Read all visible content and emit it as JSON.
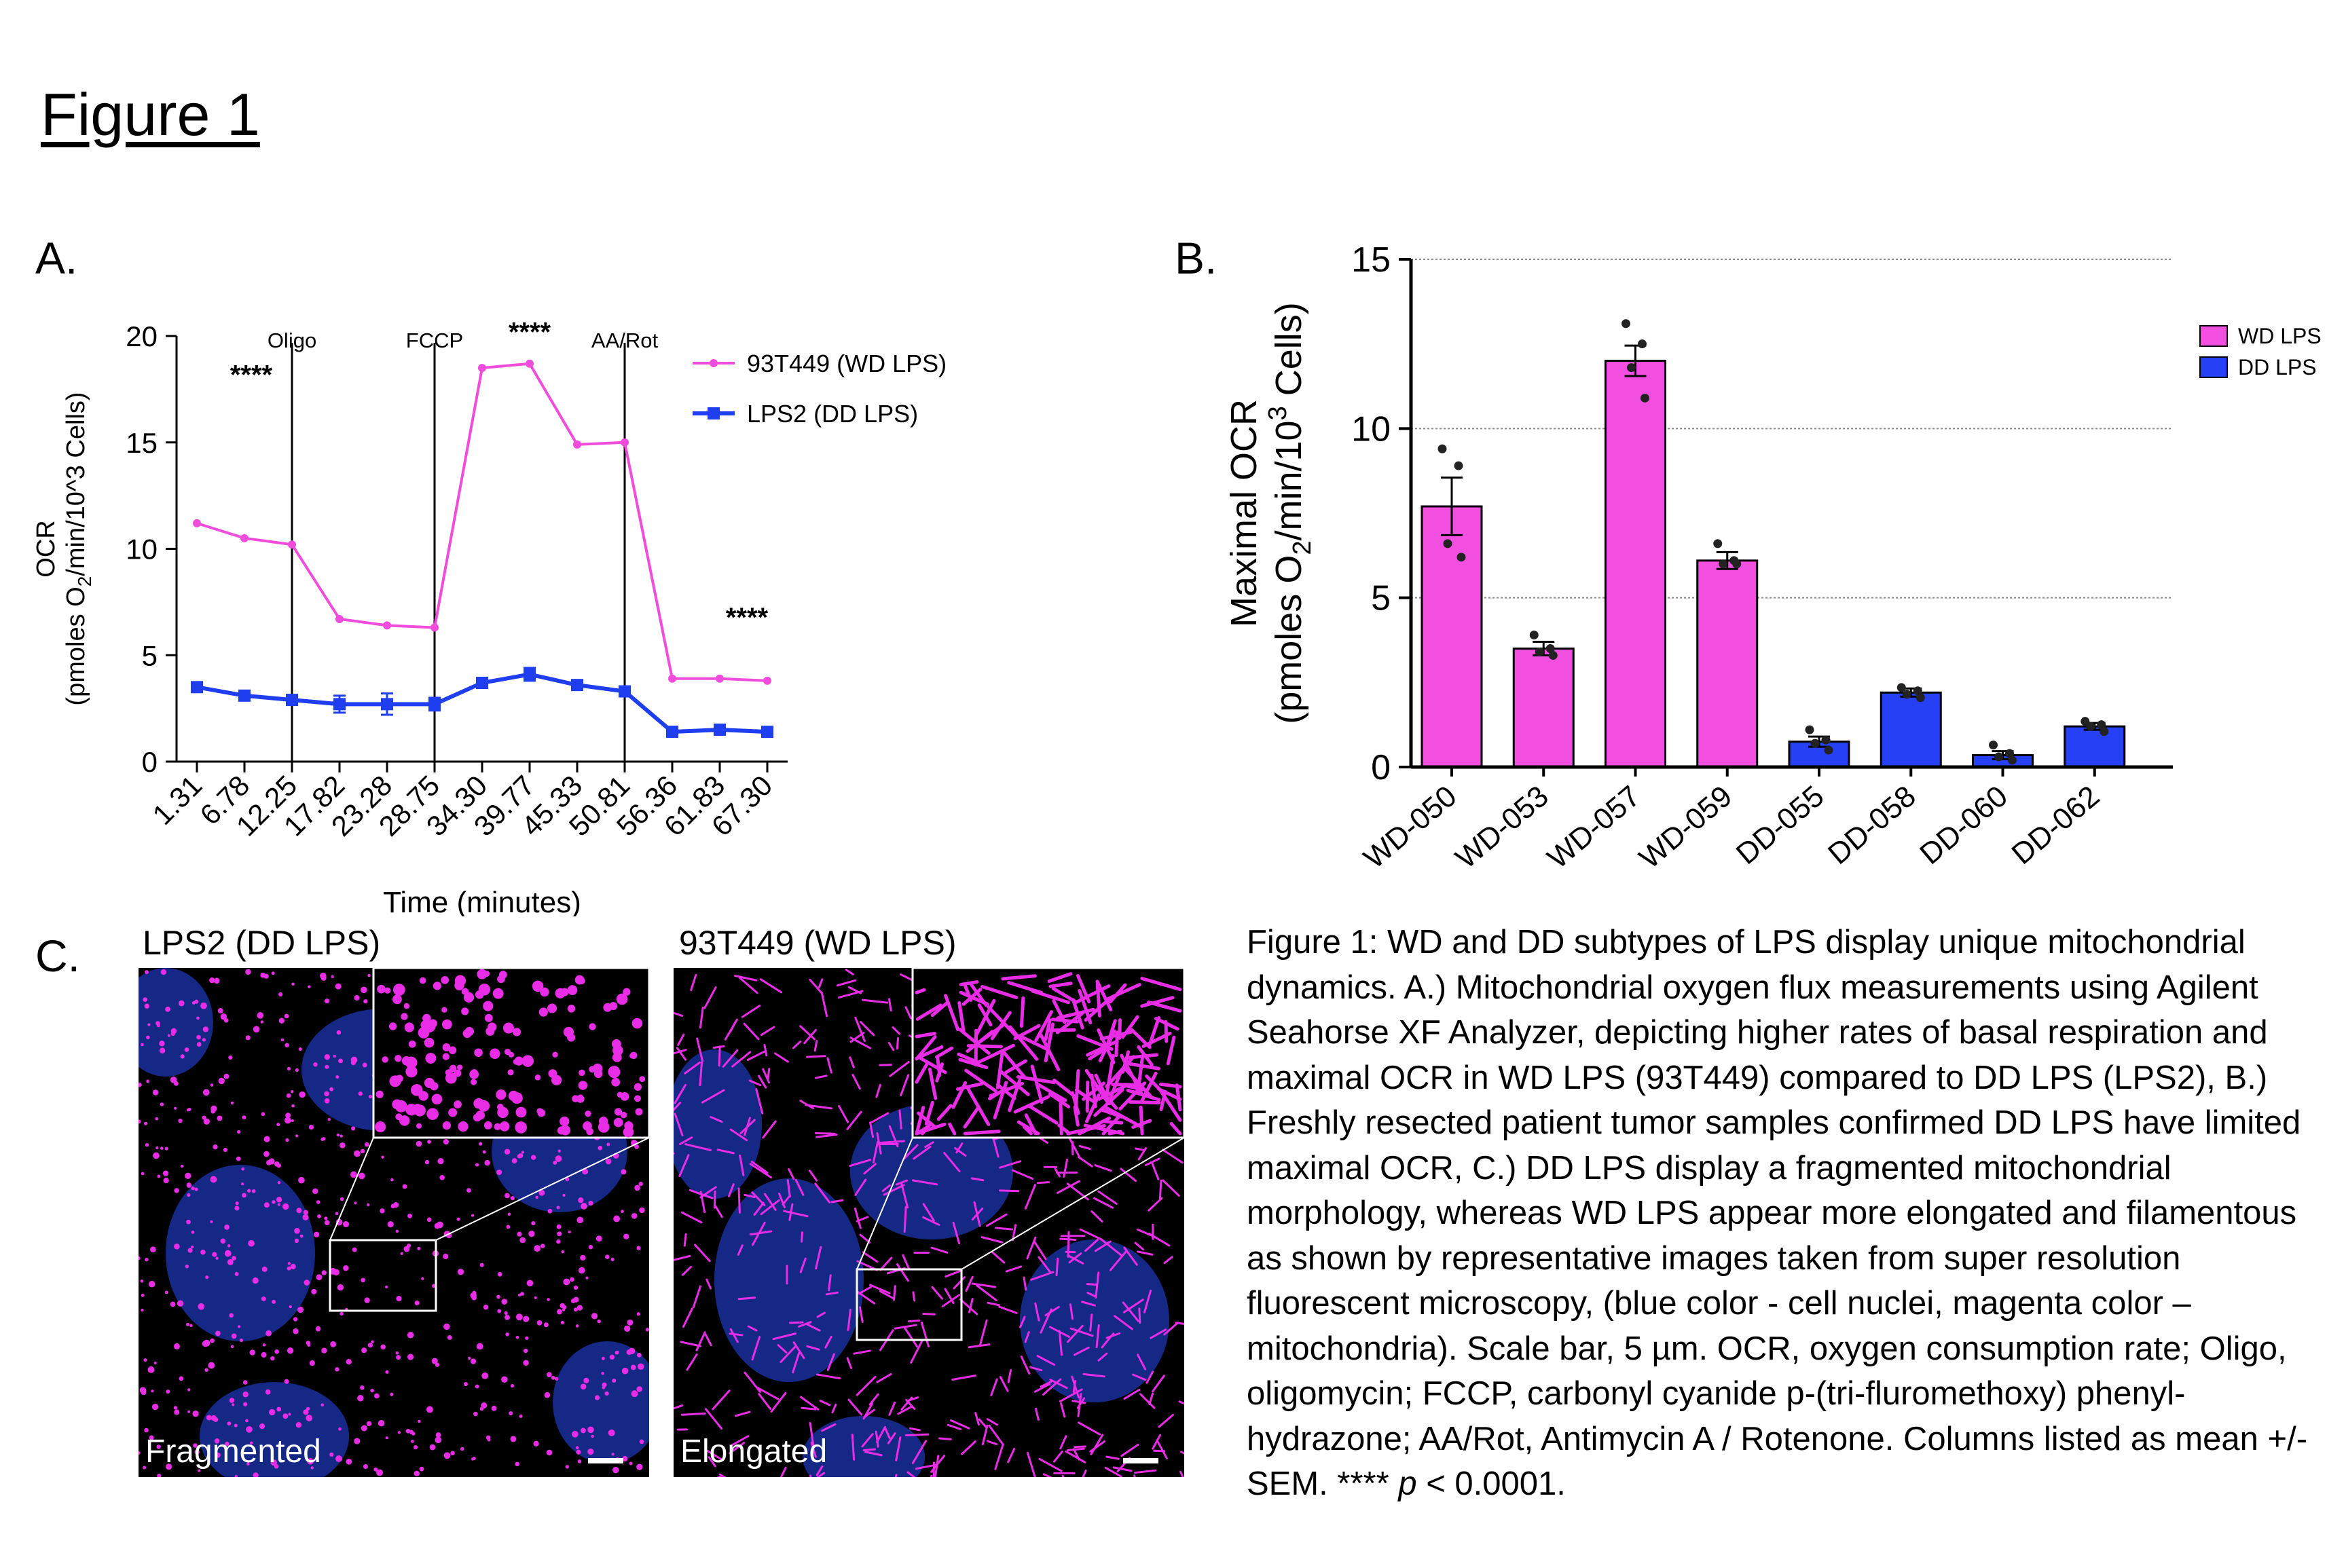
{
  "figure_title": "Figure 1",
  "panel_letters": {
    "a": "A.",
    "b": "B.",
    "c": "C."
  },
  "colors": {
    "wd": "#f04ddc",
    "dd": "#1f3ef0",
    "wd_bar": "#f24fe0",
    "dd_bar": "#2540f5",
    "nucleus": "#1a2f9e",
    "mito": "#e92ce6"
  },
  "chart_data": [
    {
      "type": "line",
      "ylabel_main": "OCR",
      "ylabel_units": "(pmoles O",
      "ylabel_sub": "2",
      "ylabel_rest": "/min/10^3 Cells)",
      "xlabel": "Time (minutes)",
      "ylim": [
        0,
        20
      ],
      "yticks": [
        "0",
        "5",
        "10",
        "15",
        "20"
      ],
      "x": [
        "1.31",
        "6.78",
        "12.25",
        "17.82",
        "23.28",
        "28.75",
        "34.30",
        "39.77",
        "45.33",
        "50.81",
        "56.36",
        "61.83",
        "67.30"
      ],
      "series": [
        {
          "name": "93T449 (WD LPS)",
          "color": "#f04ddc",
          "values": [
            11.2,
            10.5,
            10.2,
            6.7,
            6.4,
            6.3,
            18.5,
            18.7,
            14.9,
            15.0,
            3.9,
            3.9,
            3.8
          ],
          "errors": [
            0.1,
            0.1,
            0.1,
            0.1,
            0.1,
            0.1,
            0.1,
            0.1,
            0.1,
            0.1,
            0.1,
            0.05,
            0.05
          ]
        },
        {
          "name": "LPS2 (DD LPS)",
          "color": "#1f3ef0",
          "values": [
            3.5,
            3.1,
            2.9,
            2.7,
            2.7,
            2.7,
            3.7,
            4.1,
            3.6,
            3.3,
            1.4,
            1.5,
            1.4
          ],
          "errors": [
            0.2,
            0.2,
            0.2,
            0.4,
            0.5,
            0.3,
            0.2,
            0.3,
            0.2,
            0.1,
            0.1,
            0.1,
            0.1
          ]
        }
      ],
      "treatments": [
        {
          "label": "Oligo",
          "after_index": 2
        },
        {
          "label": "FCCP",
          "after_index": 5
        },
        {
          "label": "AA/Rot",
          "after_index": 9
        }
      ],
      "significance": [
        {
          "text": "****",
          "near_index": 1,
          "y": 18.2
        },
        {
          "text": "****",
          "near_index": 7,
          "y": 20.2
        },
        {
          "text": "****",
          "near_index": 12,
          "y": 6.8
        }
      ],
      "legend_position": "top-right"
    },
    {
      "type": "bar",
      "ylabel_line1": "Maximal OCR",
      "ylabel_line2": "(pmoles O",
      "ylabel_sub": "2",
      "ylabel_mid": "/min/10",
      "ylabel_sup": "3",
      "ylabel_rest": " Cells)",
      "ylim": [
        0,
        15
      ],
      "yticks": [
        "0",
        "5",
        "10",
        "15"
      ],
      "grid": true,
      "categories": [
        "WD-050",
        "WD-053",
        "WD-057",
        "WD-059",
        "DD-055",
        "DD-058",
        "DD-060",
        "DD-062"
      ],
      "groups": [
        "WD LPS",
        "WD LPS",
        "WD LPS",
        "WD LPS",
        "DD LPS",
        "DD LPS",
        "DD LPS",
        "DD LPS"
      ],
      "values": [
        7.7,
        3.5,
        12.0,
        6.1,
        0.75,
        2.2,
        0.35,
        1.2
      ],
      "errors": [
        0.85,
        0.2,
        0.45,
        0.25,
        0.15,
        0.12,
        0.12,
        0.1
      ],
      "points": [
        [
          9.4,
          8.9,
          6.6,
          6.2
        ],
        [
          3.9,
          3.5,
          3.4,
          3.3
        ],
        [
          13.1,
          12.5,
          11.8,
          10.9
        ],
        [
          6.6,
          6.1,
          6.0,
          6.0
        ],
        [
          1.1,
          0.8,
          0.7,
          0.5
        ],
        [
          2.35,
          2.25,
          2.15,
          2.05
        ],
        [
          0.65,
          0.4,
          0.3,
          0.2
        ],
        [
          1.35,
          1.25,
          1.2,
          1.05
        ]
      ],
      "legend": [
        {
          "name": "WD LPS",
          "color": "#f24fe0"
        },
        {
          "name": "DD LPS",
          "color": "#2540f5"
        }
      ],
      "legend_position": "top-right"
    }
  ],
  "micrographs": [
    {
      "title": "LPS2 (DD LPS)",
      "tag": "Fragmented"
    },
    {
      "title": "93T449 (WD LPS)",
      "tag": "Elongated"
    }
  ],
  "caption": {
    "text": "Figure 1: WD and DD subtypes of LPS display unique mitochondrial dynamics. A.) Mitochondrial oxygen flux measurements using Agilent Seahorse XF Analyzer, depicting higher rates of basal respiration and maximal OCR in WD LPS (93T449) compared to DD LPS (LPS2), B.) Freshly resected patient tumor samples confirmed DD LPS have limited maximal OCR, C.) DD LPS display a fragmented mitochondrial morphology, whereas WD LPS appear more elongated and filamentous as shown by representative images taken from super resolution fluorescent microscopy, (blue color - cell nuclei, magenta color – mitochondria). Scale bar, 5 µm. OCR, oxygen consumption rate; Oligo, oligomycin; FCCP, carbonyl cyanide p-(tri-flurometh­oxy) phenyl-hydrazone; AA/Rot, Antimycin A / Rotenone. Columns listed as mean +/- SEM. ****",
    "p_symbol": "p",
    "tail": "< 0.0001."
  }
}
